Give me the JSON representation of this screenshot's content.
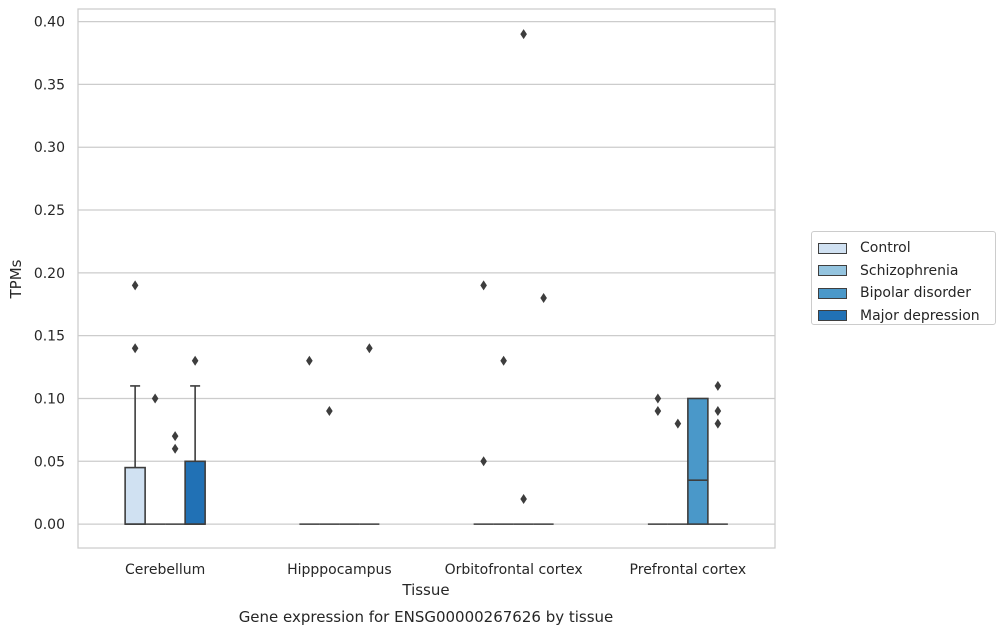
{
  "caption": "Gene expression for ENSG00000267626 by tissue",
  "chart_data": {
    "type": "box",
    "xlabel": "Tissue",
    "ylabel": "TPMs",
    "ylim": [
      -0.019,
      0.41
    ],
    "yticks": [
      0.0,
      0.05,
      0.1,
      0.15,
      0.2,
      0.25,
      0.3,
      0.35,
      0.4
    ],
    "ytick_labels": [
      "0.00",
      "0.05",
      "0.10",
      "0.15",
      "0.20",
      "0.25",
      "0.30",
      "0.35",
      "0.40"
    ],
    "grid": "horizontal",
    "legend_position": "right",
    "categories": [
      "Cerebellum",
      "Hipppocampus",
      "Orbitofrontal cortex",
      "Prefrontal cortex"
    ],
    "series": [
      {
        "name": "Control",
        "color": "#d0e1f2",
        "boxes": [
          {
            "q1": 0.0,
            "median": 0.0,
            "q3": 0.045,
            "whisker_low": 0.0,
            "whisker_high": 0.11,
            "outliers": [
              0.14,
              0.19
            ]
          },
          {
            "q1": 0.0,
            "median": 0.0,
            "q3": 0.0,
            "whisker_low": 0.0,
            "whisker_high": 0.0,
            "outliers": [
              0.13
            ]
          },
          {
            "q1": 0.0,
            "median": 0.0,
            "q3": 0.0,
            "whisker_low": 0.0,
            "whisker_high": 0.0,
            "outliers": [
              0.05,
              0.19
            ]
          },
          {
            "q1": 0.0,
            "median": 0.0,
            "q3": 0.0,
            "whisker_low": 0.0,
            "whisker_high": 0.0,
            "outliers": [
              0.09,
              0.1
            ]
          }
        ]
      },
      {
        "name": "Schizophrenia",
        "color": "#94c4df",
        "boxes": [
          {
            "q1": 0.0,
            "median": 0.0,
            "q3": 0.0,
            "whisker_low": 0.0,
            "whisker_high": 0.0,
            "outliers": [
              0.1
            ]
          },
          {
            "q1": 0.0,
            "median": 0.0,
            "q3": 0.0,
            "whisker_low": 0.0,
            "whisker_high": 0.0,
            "outliers": [
              0.09
            ]
          },
          {
            "q1": 0.0,
            "median": 0.0,
            "q3": 0.0,
            "whisker_low": 0.0,
            "whisker_high": 0.0,
            "outliers": [
              0.13
            ]
          },
          {
            "q1": 0.0,
            "median": 0.0,
            "q3": 0.0,
            "whisker_low": 0.0,
            "whisker_high": 0.0,
            "outliers": [
              0.08
            ]
          }
        ]
      },
      {
        "name": "Bipolar disorder",
        "color": "#4a98c9",
        "boxes": [
          {
            "q1": 0.0,
            "median": 0.0,
            "q3": 0.0,
            "whisker_low": 0.0,
            "whisker_high": 0.0,
            "outliers": [
              0.06,
              0.07
            ]
          },
          {
            "q1": 0.0,
            "median": 0.0,
            "q3": 0.0,
            "whisker_low": 0.0,
            "whisker_high": 0.0,
            "outliers": []
          },
          {
            "q1": 0.0,
            "median": 0.0,
            "q3": 0.0,
            "whisker_low": 0.0,
            "whisker_high": 0.0,
            "outliers": [
              0.02,
              0.39
            ]
          },
          {
            "q1": 0.0,
            "median": 0.035,
            "q3": 0.1,
            "whisker_low": 0.0,
            "whisker_high": 0.1,
            "outliers": []
          }
        ]
      },
      {
        "name": "Major depression",
        "color": "#2171b5",
        "boxes": [
          {
            "q1": 0.0,
            "median": 0.0,
            "q3": 0.05,
            "whisker_low": 0.0,
            "whisker_high": 0.11,
            "outliers": [
              0.13
            ]
          },
          {
            "q1": 0.0,
            "median": 0.0,
            "q3": 0.0,
            "whisker_low": 0.0,
            "whisker_high": 0.0,
            "outliers": [
              0.14
            ]
          },
          {
            "q1": 0.0,
            "median": 0.0,
            "q3": 0.0,
            "whisker_low": 0.0,
            "whisker_high": 0.0,
            "outliers": [
              0.18
            ]
          },
          {
            "q1": 0.0,
            "median": 0.0,
            "q3": 0.0,
            "whisker_low": 0.0,
            "whisker_high": 0.0,
            "outliers": [
              0.08,
              0.09,
              0.11
            ]
          }
        ]
      }
    ]
  }
}
